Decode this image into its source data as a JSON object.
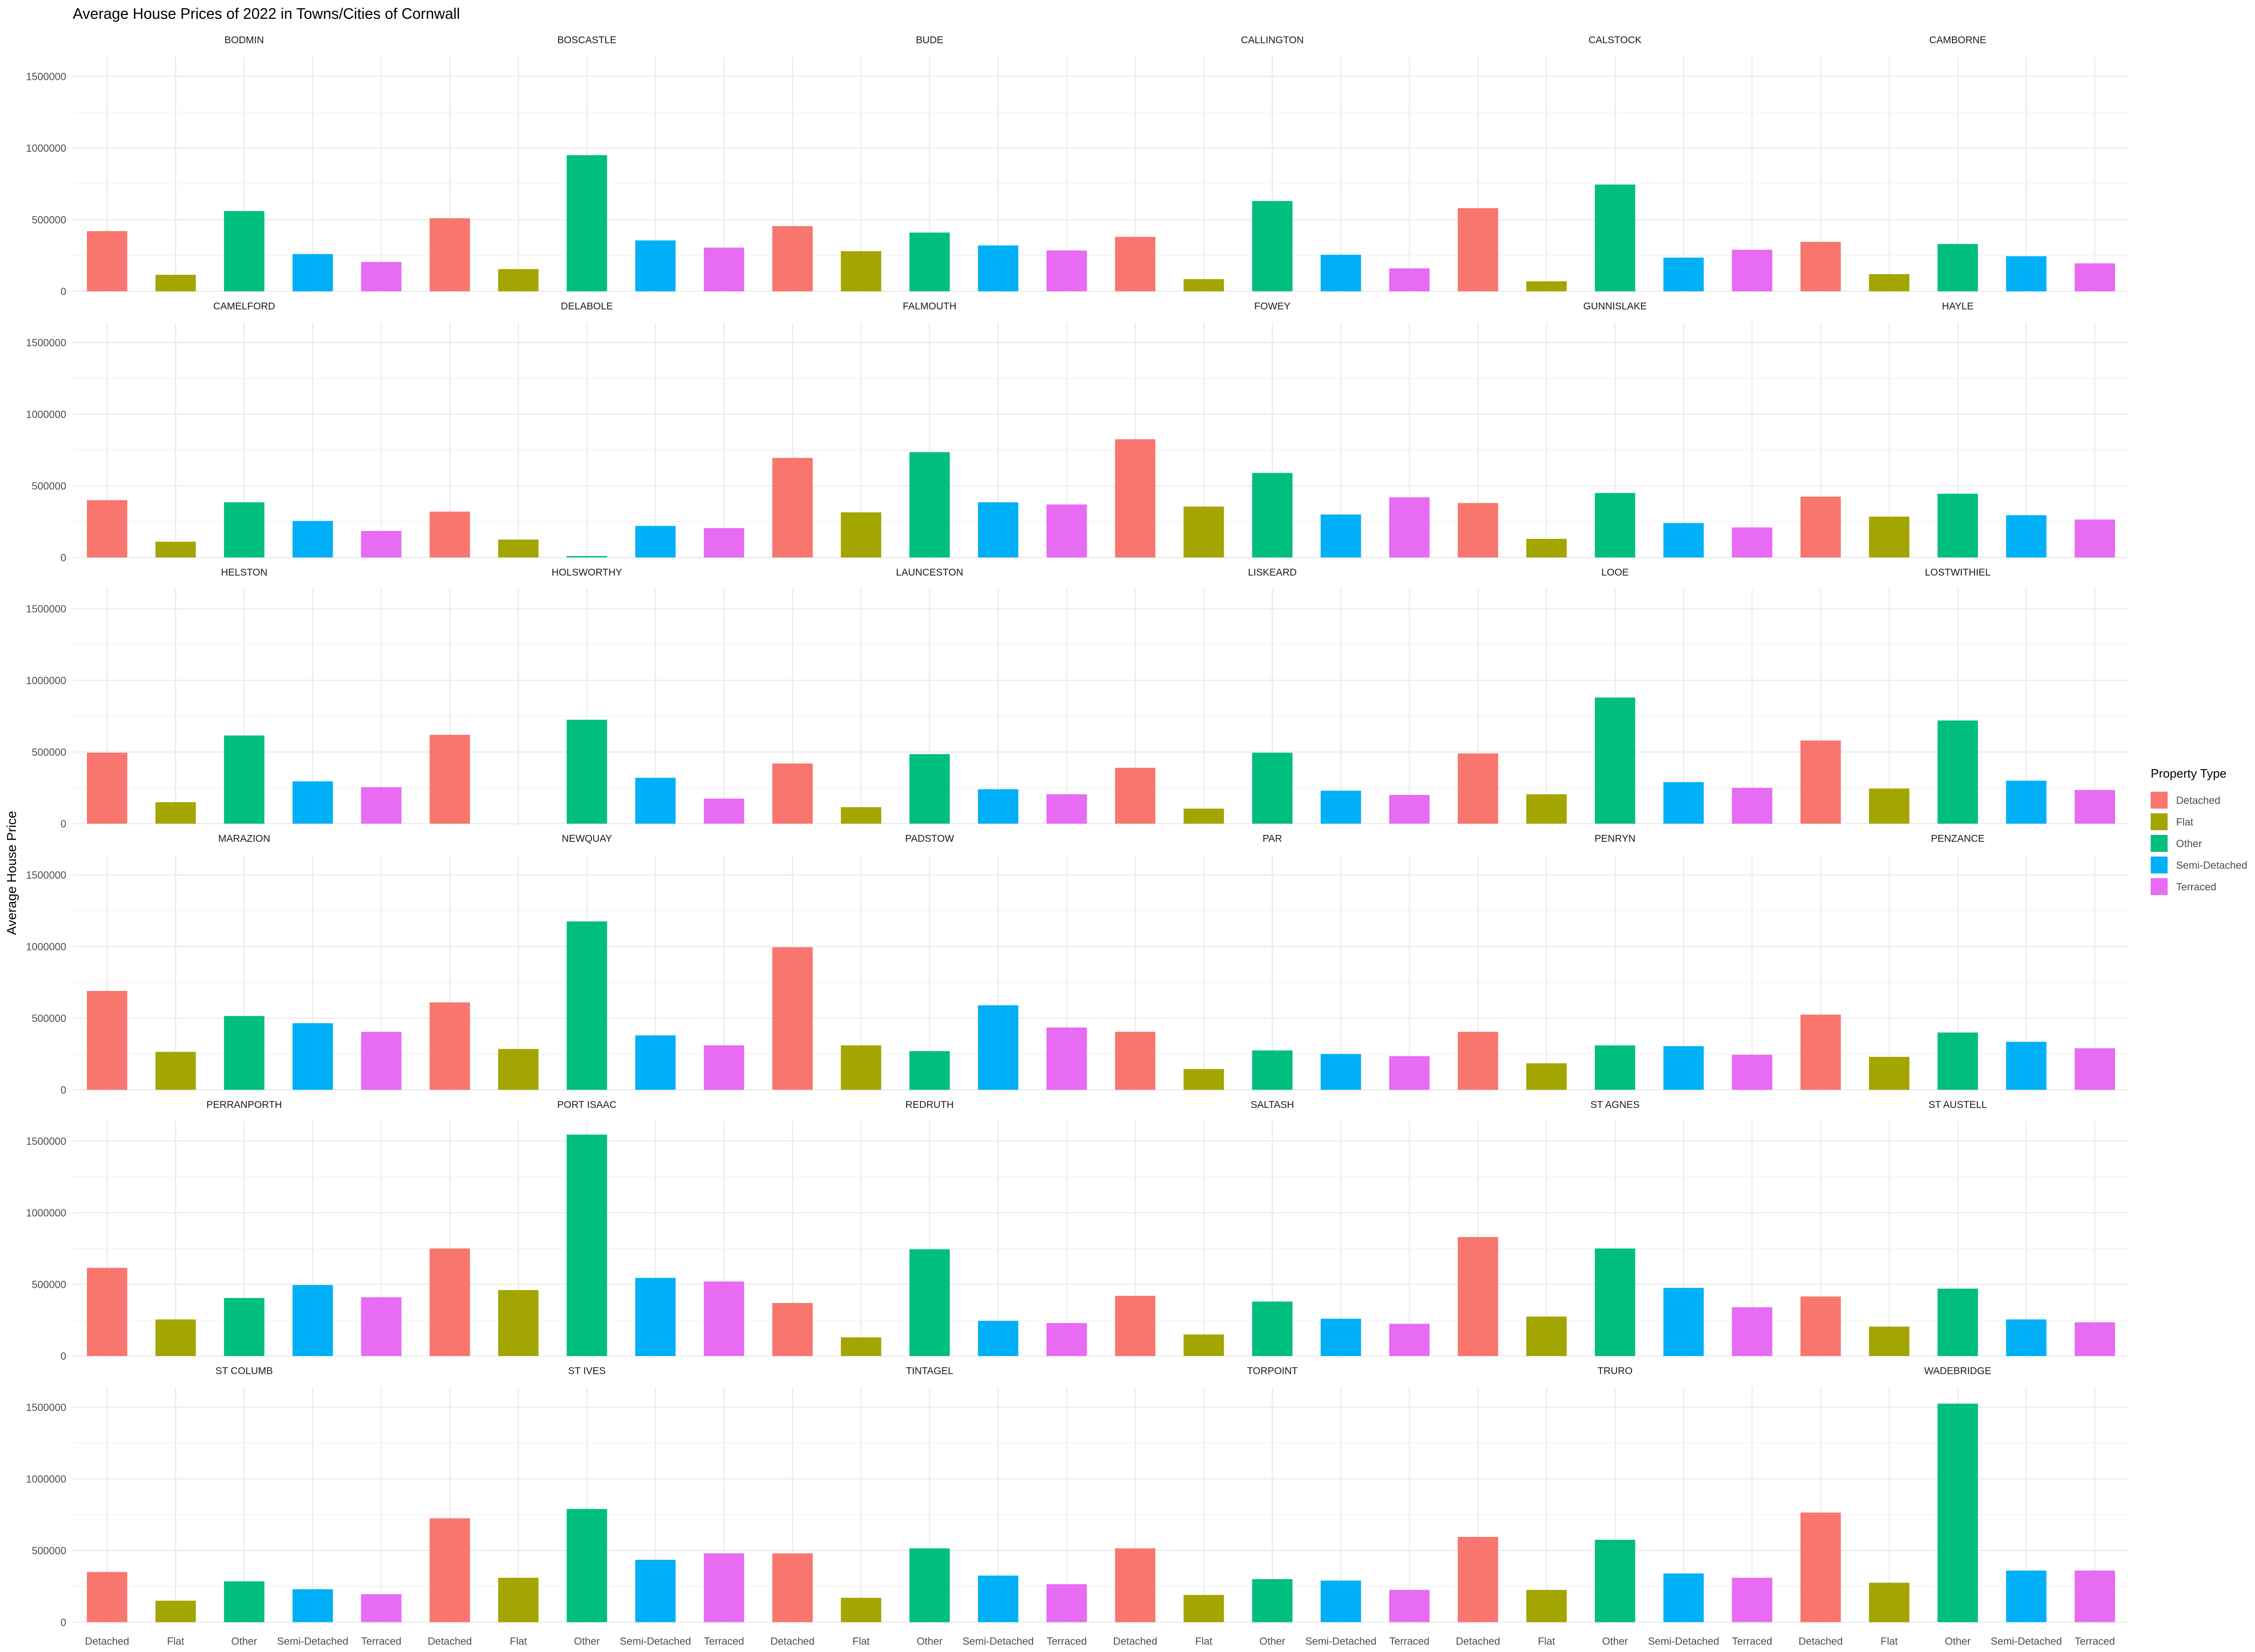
{
  "chart_data": {
    "type": "bar",
    "title": "Average House Prices of 2022 in Towns/Cities of Cornwall",
    "xlabel": "Property Type",
    "ylabel": "Average House Price",
    "ylim": [
      0,
      1600000
    ],
    "y_ticks": [
      0,
      500000,
      1000000,
      1500000
    ],
    "y_tick_labels": [
      "0",
      "500000",
      "1000000",
      "1500000"
    ],
    "grid": true,
    "legend": {
      "title": "Property Type",
      "position": "right",
      "entries": [
        "Detached",
        "Flat",
        "Other",
        "Semi-Detached",
        "Terraced"
      ]
    },
    "categories": [
      "Detached",
      "Flat",
      "Other",
      "Semi-Detached",
      "Terraced"
    ],
    "colors": {
      "Detached": "#F8766D",
      "Flat": "#A3A500",
      "Other": "#00BF7D",
      "Semi-Detached": "#00B0F6",
      "Terraced": "#E76BF3"
    },
    "panels": [
      {
        "name": "BODMIN",
        "values": [
          420000,
          115000,
          560000,
          260000,
          205000
        ]
      },
      {
        "name": "BOSCASTLE",
        "values": [
          510000,
          155000,
          950000,
          355000,
          305000
        ]
      },
      {
        "name": "BUDE",
        "values": [
          455000,
          280000,
          410000,
          320000,
          285000
        ]
      },
      {
        "name": "CALLINGTON",
        "values": [
          380000,
          85000,
          630000,
          255000,
          160000
        ]
      },
      {
        "name": "CALSTOCK",
        "values": [
          580000,
          70000,
          745000,
          235000,
          290000
        ]
      },
      {
        "name": "CAMBORNE",
        "values": [
          345000,
          120000,
          330000,
          245000,
          195000
        ]
      },
      {
        "name": "CAMELFORD",
        "values": [
          400000,
          110000,
          385000,
          255000,
          185000
        ]
      },
      {
        "name": "DELABOLE",
        "values": [
          320000,
          125000,
          10000,
          220000,
          205000
        ]
      },
      {
        "name": "FALMOUTH",
        "values": [
          695000,
          315000,
          735000,
          385000,
          370000
        ]
      },
      {
        "name": "FOWEY",
        "values": [
          825000,
          355000,
          590000,
          300000,
          420000
        ]
      },
      {
        "name": "GUNNISLAKE",
        "values": [
          380000,
          130000,
          450000,
          240000,
          210000
        ]
      },
      {
        "name": "HAYLE",
        "values": [
          425000,
          285000,
          445000,
          295000,
          265000
        ]
      },
      {
        "name": "HELSTON",
        "values": [
          495000,
          150000,
          615000,
          295000,
          255000
        ]
      },
      {
        "name": "HOLSWORTHY",
        "values": [
          620000,
          0,
          725000,
          320000,
          175000
        ]
      },
      {
        "name": "LAUNCESTON",
        "values": [
          420000,
          115000,
          485000,
          240000,
          205000
        ]
      },
      {
        "name": "LISKEARD",
        "values": [
          390000,
          105000,
          495000,
          230000,
          200000
        ]
      },
      {
        "name": "LOOE",
        "values": [
          490000,
          205000,
          880000,
          290000,
          250000
        ]
      },
      {
        "name": "LOSTWITHIEL",
        "values": [
          580000,
          245000,
          720000,
          300000,
          235000
        ]
      },
      {
        "name": "MARAZION",
        "values": [
          690000,
          265000,
          515000,
          465000,
          405000
        ]
      },
      {
        "name": "NEWQUAY",
        "values": [
          610000,
          285000,
          1175000,
          380000,
          310000
        ]
      },
      {
        "name": "PADSTOW",
        "values": [
          995000,
          310000,
          270000,
          590000,
          435000
        ]
      },
      {
        "name": "PAR",
        "values": [
          405000,
          145000,
          275000,
          250000,
          235000
        ]
      },
      {
        "name": "PENRYN",
        "values": [
          405000,
          185000,
          310000,
          305000,
          245000
        ]
      },
      {
        "name": "PENZANCE",
        "values": [
          525000,
          230000,
          400000,
          335000,
          290000
        ]
      },
      {
        "name": "PERRANPORTH",
        "values": [
          615000,
          255000,
          405000,
          495000,
          410000
        ]
      },
      {
        "name": "PORT ISAAC",
        "values": [
          750000,
          460000,
          1545000,
          545000,
          520000
        ]
      },
      {
        "name": "REDRUTH",
        "values": [
          370000,
          130000,
          745000,
          245000,
          230000
        ]
      },
      {
        "name": "SALTASH",
        "values": [
          420000,
          150000,
          380000,
          260000,
          225000
        ]
      },
      {
        "name": "ST AGNES",
        "values": [
          830000,
          275000,
          750000,
          475000,
          340000
        ]
      },
      {
        "name": "ST AUSTELL",
        "values": [
          415000,
          205000,
          470000,
          255000,
          235000
        ]
      },
      {
        "name": "ST COLUMB",
        "values": [
          350000,
          150000,
          285000,
          230000,
          195000
        ]
      },
      {
        "name": "ST IVES",
        "values": [
          725000,
          310000,
          790000,
          435000,
          480000
        ]
      },
      {
        "name": "TINTAGEL",
        "values": [
          480000,
          170000,
          515000,
          325000,
          265000
        ]
      },
      {
        "name": "TORPOINT",
        "values": [
          515000,
          190000,
          300000,
          290000,
          225000
        ]
      },
      {
        "name": "TRURO",
        "values": [
          595000,
          225000,
          575000,
          340000,
          310000
        ]
      },
      {
        "name": "WADEBRIDGE",
        "values": [
          765000,
          275000,
          1525000,
          360000,
          360000
        ]
      }
    ]
  }
}
